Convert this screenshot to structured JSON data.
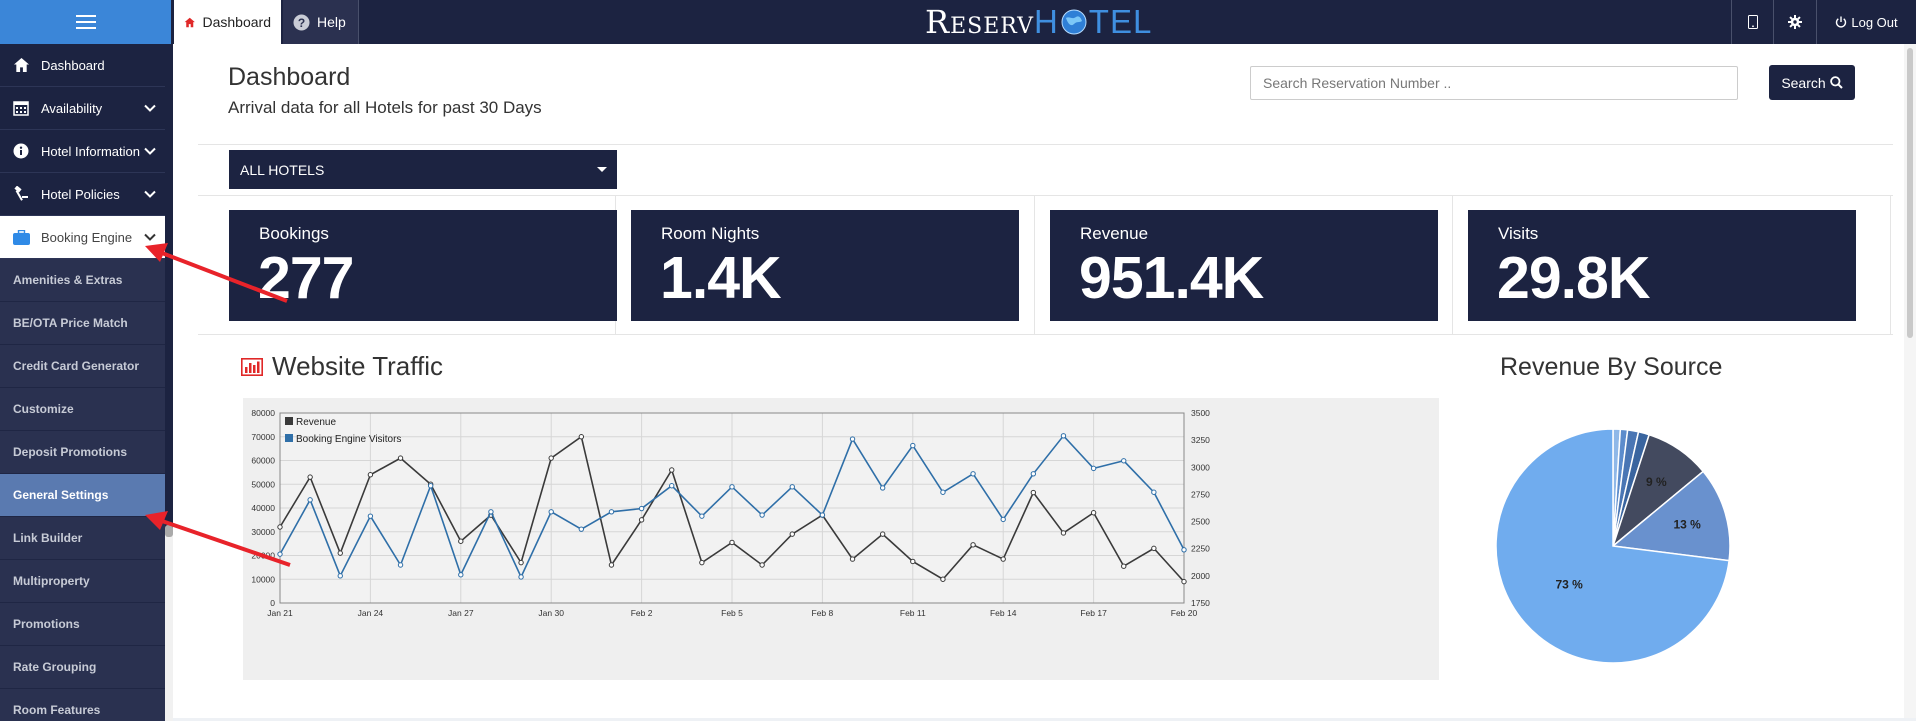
{
  "topbar": {
    "tabs": [
      {
        "label": "Dashboard",
        "icon": "home-icon"
      },
      {
        "label": "Help",
        "icon": "help-circle-icon"
      }
    ],
    "logo": {
      "part1": "Reserv",
      "part2": "H",
      "globe": "🌐",
      "part3": "TEL"
    },
    "right": {
      "tablet_icon": "tablet-icon",
      "gear_icon": "gear-icon",
      "logout_label": "Log Out"
    }
  },
  "sidebar": {
    "items": [
      {
        "label": "Dashboard",
        "icon": "home-icon",
        "chevron": false
      },
      {
        "label": "Availability",
        "icon": "calendar-icon",
        "chevron": true
      },
      {
        "label": "Hotel Information",
        "icon": "info-icon",
        "chevron": true
      },
      {
        "label": "Hotel Policies",
        "icon": "gavel-icon",
        "chevron": true
      },
      {
        "label": "Booking Engine",
        "icon": "briefcase-icon",
        "chevron": true,
        "active": true
      }
    ],
    "subitems": [
      "Amenities & Extras",
      "BE/OTA Price Match",
      "Credit Card Generator",
      "Customize",
      "Deposit Promotions",
      "General Settings",
      "Link Builder",
      "Multiproperty",
      "Promotions",
      "Rate Grouping",
      "Room Features"
    ],
    "selected_subitem": "General Settings"
  },
  "header": {
    "title": "Dashboard",
    "subtitle": "Arrival data for all Hotels for past 30 Days"
  },
  "search": {
    "placeholder": "Search Reservation Number ..",
    "button_label": "Search"
  },
  "hotel_filter": {
    "selected": "ALL HOTELS"
  },
  "stats": [
    {
      "label": "Bookings",
      "value": "277"
    },
    {
      "label": "Room Nights",
      "value": "1.4K"
    },
    {
      "label": "Revenue",
      "value": "951.4K"
    },
    {
      "label": "Visits",
      "value": "29.8K"
    }
  ],
  "traffic": {
    "title": "Website Traffic"
  },
  "revenue_by_source": {
    "title": "Revenue By Source"
  },
  "chart_data": [
    {
      "type": "line",
      "title": "Website Traffic",
      "legend_position": "top-left",
      "grid": true,
      "x": [
        "Jan 21",
        "Jan 22",
        "Jan 23",
        "Jan 24",
        "Jan 25",
        "Jan 26",
        "Jan 27",
        "Jan 28",
        "Jan 29",
        "Jan 30",
        "Jan 31",
        "Feb 1",
        "Feb 2",
        "Feb 3",
        "Feb 4",
        "Feb 5",
        "Feb 6",
        "Feb 7",
        "Feb 8",
        "Feb 9",
        "Feb 10",
        "Feb 11",
        "Feb 12",
        "Feb 13",
        "Feb 14",
        "Feb 15",
        "Feb 16",
        "Feb 17",
        "Feb 18",
        "Feb 19",
        "Feb 20"
      ],
      "x_tick_labels": [
        "Jan 21",
        "Jan 24",
        "Jan 27",
        "Jan 30",
        "Feb 2",
        "Feb 5",
        "Feb 8",
        "Feb 11",
        "Feb 14",
        "Feb 17",
        "Feb 20"
      ],
      "y_left": {
        "min": 0,
        "max": 80000,
        "ticks": [
          0,
          10000,
          20000,
          30000,
          40000,
          50000,
          60000,
          70000,
          80000
        ]
      },
      "y_right": {
        "min": 1750,
        "max": 3500,
        "ticks": [
          1750,
          2000,
          2250,
          2500,
          2750,
          3000,
          3250,
          3500
        ]
      },
      "series": [
        {
          "name": "Revenue",
          "axis": "left",
          "color": "#3a3a3a",
          "values": [
            32000,
            53000,
            21000,
            54000,
            61000,
            50000,
            26000,
            37000,
            17000,
            61000,
            70000,
            16000,
            35000,
            56000,
            17000,
            25500,
            16000,
            29000,
            37000,
            18500,
            29000,
            17500,
            10000,
            24500,
            18500,
            46500,
            29500,
            38000,
            15500,
            23000,
            9000
          ]
        },
        {
          "name": "Booking Engine Visitors",
          "axis": "right",
          "color": "#2f6fa8",
          "values": [
            2200,
            2700,
            2000,
            2550,
            2100,
            2830,
            2010,
            2590,
            1990,
            2590,
            2430,
            2590,
            2620,
            2830,
            2550,
            2820,
            2560,
            2820,
            2560,
            3260,
            2810,
            3200,
            2770,
            2940,
            2520,
            2940,
            3290,
            2990,
            3060,
            2770,
            2240
          ]
        }
      ]
    },
    {
      "type": "pie",
      "title": "Revenue By Source",
      "slices": [
        {
          "label": "9 %",
          "value": 9,
          "color": "#434a5f"
        },
        {
          "label": "13 %",
          "value": 13,
          "color": "#6991ce"
        },
        {
          "label": "73 %",
          "value": 73,
          "color": "#70acee"
        },
        {
          "label": "",
          "value": 1,
          "color": "#8fb8e8"
        },
        {
          "label": "",
          "value": 1,
          "color": "#5c8ccc"
        },
        {
          "label": "",
          "value": 1.5,
          "color": "#4a76b4"
        },
        {
          "label": "",
          "value": 1.5,
          "color": "#3a659f"
        }
      ]
    }
  ],
  "colors": {
    "navy": "#1c2341",
    "accent_blue": "#3b86d8",
    "selected_sub": "#5a7ab0",
    "arrow": "#e8232a"
  }
}
